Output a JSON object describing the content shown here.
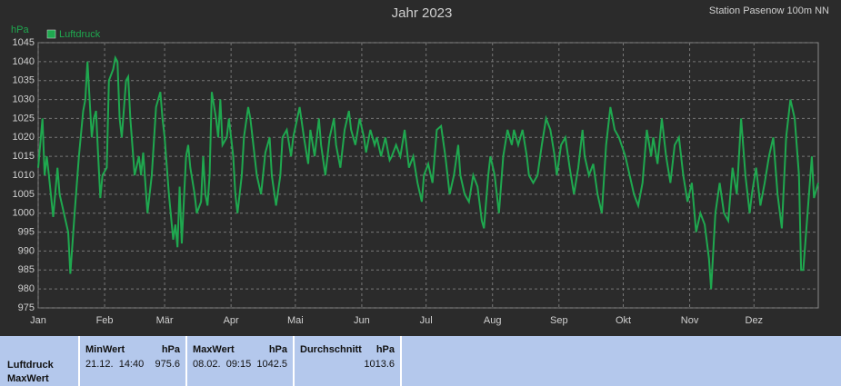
{
  "chart_data": {
    "type": "line",
    "title": "Jahr 2023",
    "subtitle": "Station Pasenow 100m NN",
    "ylabel": "hPa",
    "x": [
      0,
      2,
      3,
      4,
      5,
      7,
      9,
      10,
      12,
      14,
      15,
      17,
      19,
      21,
      22,
      23,
      24,
      25,
      26,
      27,
      28,
      29,
      30,
      32,
      33,
      35,
      36,
      37,
      38,
      39,
      41,
      42,
      43,
      45,
      47,
      48,
      49,
      51,
      53,
      55,
      57,
      58,
      59,
      61,
      63,
      64,
      65,
      66,
      67,
      69,
      70,
      71,
      73,
      74,
      76,
      77,
      78,
      79,
      80,
      81,
      83,
      84,
      85,
      86,
      88,
      89,
      91,
      92,
      93,
      95,
      96,
      98,
      99,
      100,
      102,
      104,
      106,
      108,
      109,
      111,
      113,
      114,
      116,
      118,
      119,
      122,
      124,
      126,
      127,
      129,
      131,
      132,
      134,
      136,
      138,
      139,
      141,
      143,
      145,
      146,
      148,
      150,
      152,
      153,
      155,
      157,
      158,
      160,
      162,
      164,
      165,
      167,
      169,
      171,
      173,
      175,
      177,
      179,
      180,
      182,
      184,
      186,
      188,
      190,
      192,
      194,
      196,
      197,
      199,
      201,
      203,
      205,
      207,
      208,
      210,
      211,
      213,
      215,
      217,
      219,
      221,
      222,
      224,
      226,
      228,
      229,
      231,
      233,
      235,
      237,
      239,
      241,
      242,
      244,
      246,
      248,
      250,
      252,
      254,
      255,
      257,
      259,
      261,
      263,
      265,
      267,
      269,
      271,
      274,
      276,
      278,
      280,
      282,
      284,
      286,
      287,
      289,
      291,
      293,
      295,
      297,
      299,
      301,
      303,
      305,
      307,
      309,
      311,
      313,
      314,
      316,
      318,
      320,
      322,
      324,
      326,
      328,
      330,
      332,
      333,
      335,
      337,
      339,
      341,
      343,
      345,
      347,
      349,
      351,
      353,
      355,
      356,
      357,
      359,
      361,
      362,
      364
    ],
    "series": [
      {
        "name": "Luftdruck",
        "color": "#1fa84f",
        "values": [
          1012,
          1025,
          1010,
          1015,
          1010,
          999,
          1012,
          1005,
          1000,
          995,
          984,
          1000,
          1015,
          1027,
          1030,
          1040,
          1030,
          1020,
          1025,
          1027,
          1015,
          1004,
          1010,
          1012,
          1035,
          1038,
          1041,
          1040,
          1025,
          1020,
          1035,
          1036,
          1025,
          1010,
          1015,
          1010,
          1016,
          1000,
          1010,
          1028,
          1032,
          1025,
          1020,
          1005,
          993,
          997,
          991,
          1007,
          992,
          1015,
          1018,
          1012,
          1005,
          1000,
          1003,
          1015,
          1005,
          1002,
          1010,
          1032,
          1025,
          1020,
          1030,
          1018,
          1020,
          1025,
          1015,
          1005,
          1000,
          1010,
          1020,
          1028,
          1025,
          1020,
          1010,
          1005,
          1016,
          1020,
          1010,
          1002,
          1010,
          1020,
          1022,
          1015,
          1020,
          1028,
          1020,
          1013,
          1022,
          1015,
          1025,
          1018,
          1010,
          1020,
          1025,
          1018,
          1012,
          1022,
          1027,
          1022,
          1018,
          1025,
          1020,
          1016,
          1022,
          1018,
          1020,
          1015,
          1020,
          1014,
          1015,
          1018,
          1015,
          1022,
          1012,
          1015,
          1008,
          1003,
          1010,
          1013,
          1008,
          1022,
          1023,
          1015,
          1005,
          1010,
          1018,
          1010,
          1005,
          1003,
          1010,
          1007,
          998,
          996,
          1010,
          1015,
          1010,
          1000,
          1015,
          1022,
          1018,
          1022,
          1018,
          1022,
          1015,
          1010,
          1008,
          1010,
          1018,
          1025,
          1022,
          1015,
          1010,
          1018,
          1020,
          1012,
          1005,
          1012,
          1022,
          1015,
          1010,
          1013,
          1005,
          1000,
          1018,
          1028,
          1022,
          1020,
          1015,
          1010,
          1005,
          1002,
          1008,
          1022,
          1015,
          1020,
          1013,
          1025,
          1015,
          1008,
          1018,
          1020,
          1010,
          1003,
          1008,
          995,
          1000,
          997,
          988,
          980,
          1000,
          1008,
          1000,
          998,
          1012,
          1005,
          1025,
          1010,
          1000,
          1005,
          1012,
          1002,
          1008,
          1015,
          1020,
          1005,
          996,
          1020,
          1030,
          1025,
          1010,
          985,
          985,
          1000,
          1015,
          1004,
          1008
        ]
      }
    ],
    "xlim": [
      0,
      364
    ],
    "xticks": [
      {
        "value": 0,
        "label": "Jan"
      },
      {
        "value": 31,
        "label": "Feb"
      },
      {
        "value": 59,
        "label": "Mär"
      },
      {
        "value": 90,
        "label": "Apr"
      },
      {
        "value": 120,
        "label": "Mai"
      },
      {
        "value": 151,
        "label": "Jun"
      },
      {
        "value": 181,
        "label": "Jul"
      },
      {
        "value": 212,
        "label": "Aug"
      },
      {
        "value": 243,
        "label": "Sep"
      },
      {
        "value": 273,
        "label": "Okt"
      },
      {
        "value": 304,
        "label": "Nov"
      },
      {
        "value": 334,
        "label": "Dez"
      }
    ],
    "ylim": [
      975,
      1045
    ],
    "yticks": [
      975,
      980,
      985,
      990,
      995,
      1000,
      1005,
      1010,
      1015,
      1020,
      1025,
      1030,
      1035,
      1040,
      1045
    ],
    "grid": true
  },
  "table": {
    "row_labels": [
      "Luftdruck",
      "MaxWert"
    ],
    "columns": [
      {
        "header": "MinWert",
        "unit": "hPa",
        "time": "21.12.  14:40",
        "value": 975.6
      },
      {
        "header": "MaxWert",
        "unit": "hPa",
        "time": "08.02.  09:15",
        "value": 1042.5
      },
      {
        "header": "Durchschnitt",
        "unit": "hPa",
        "value": 1013.6
      }
    ]
  }
}
